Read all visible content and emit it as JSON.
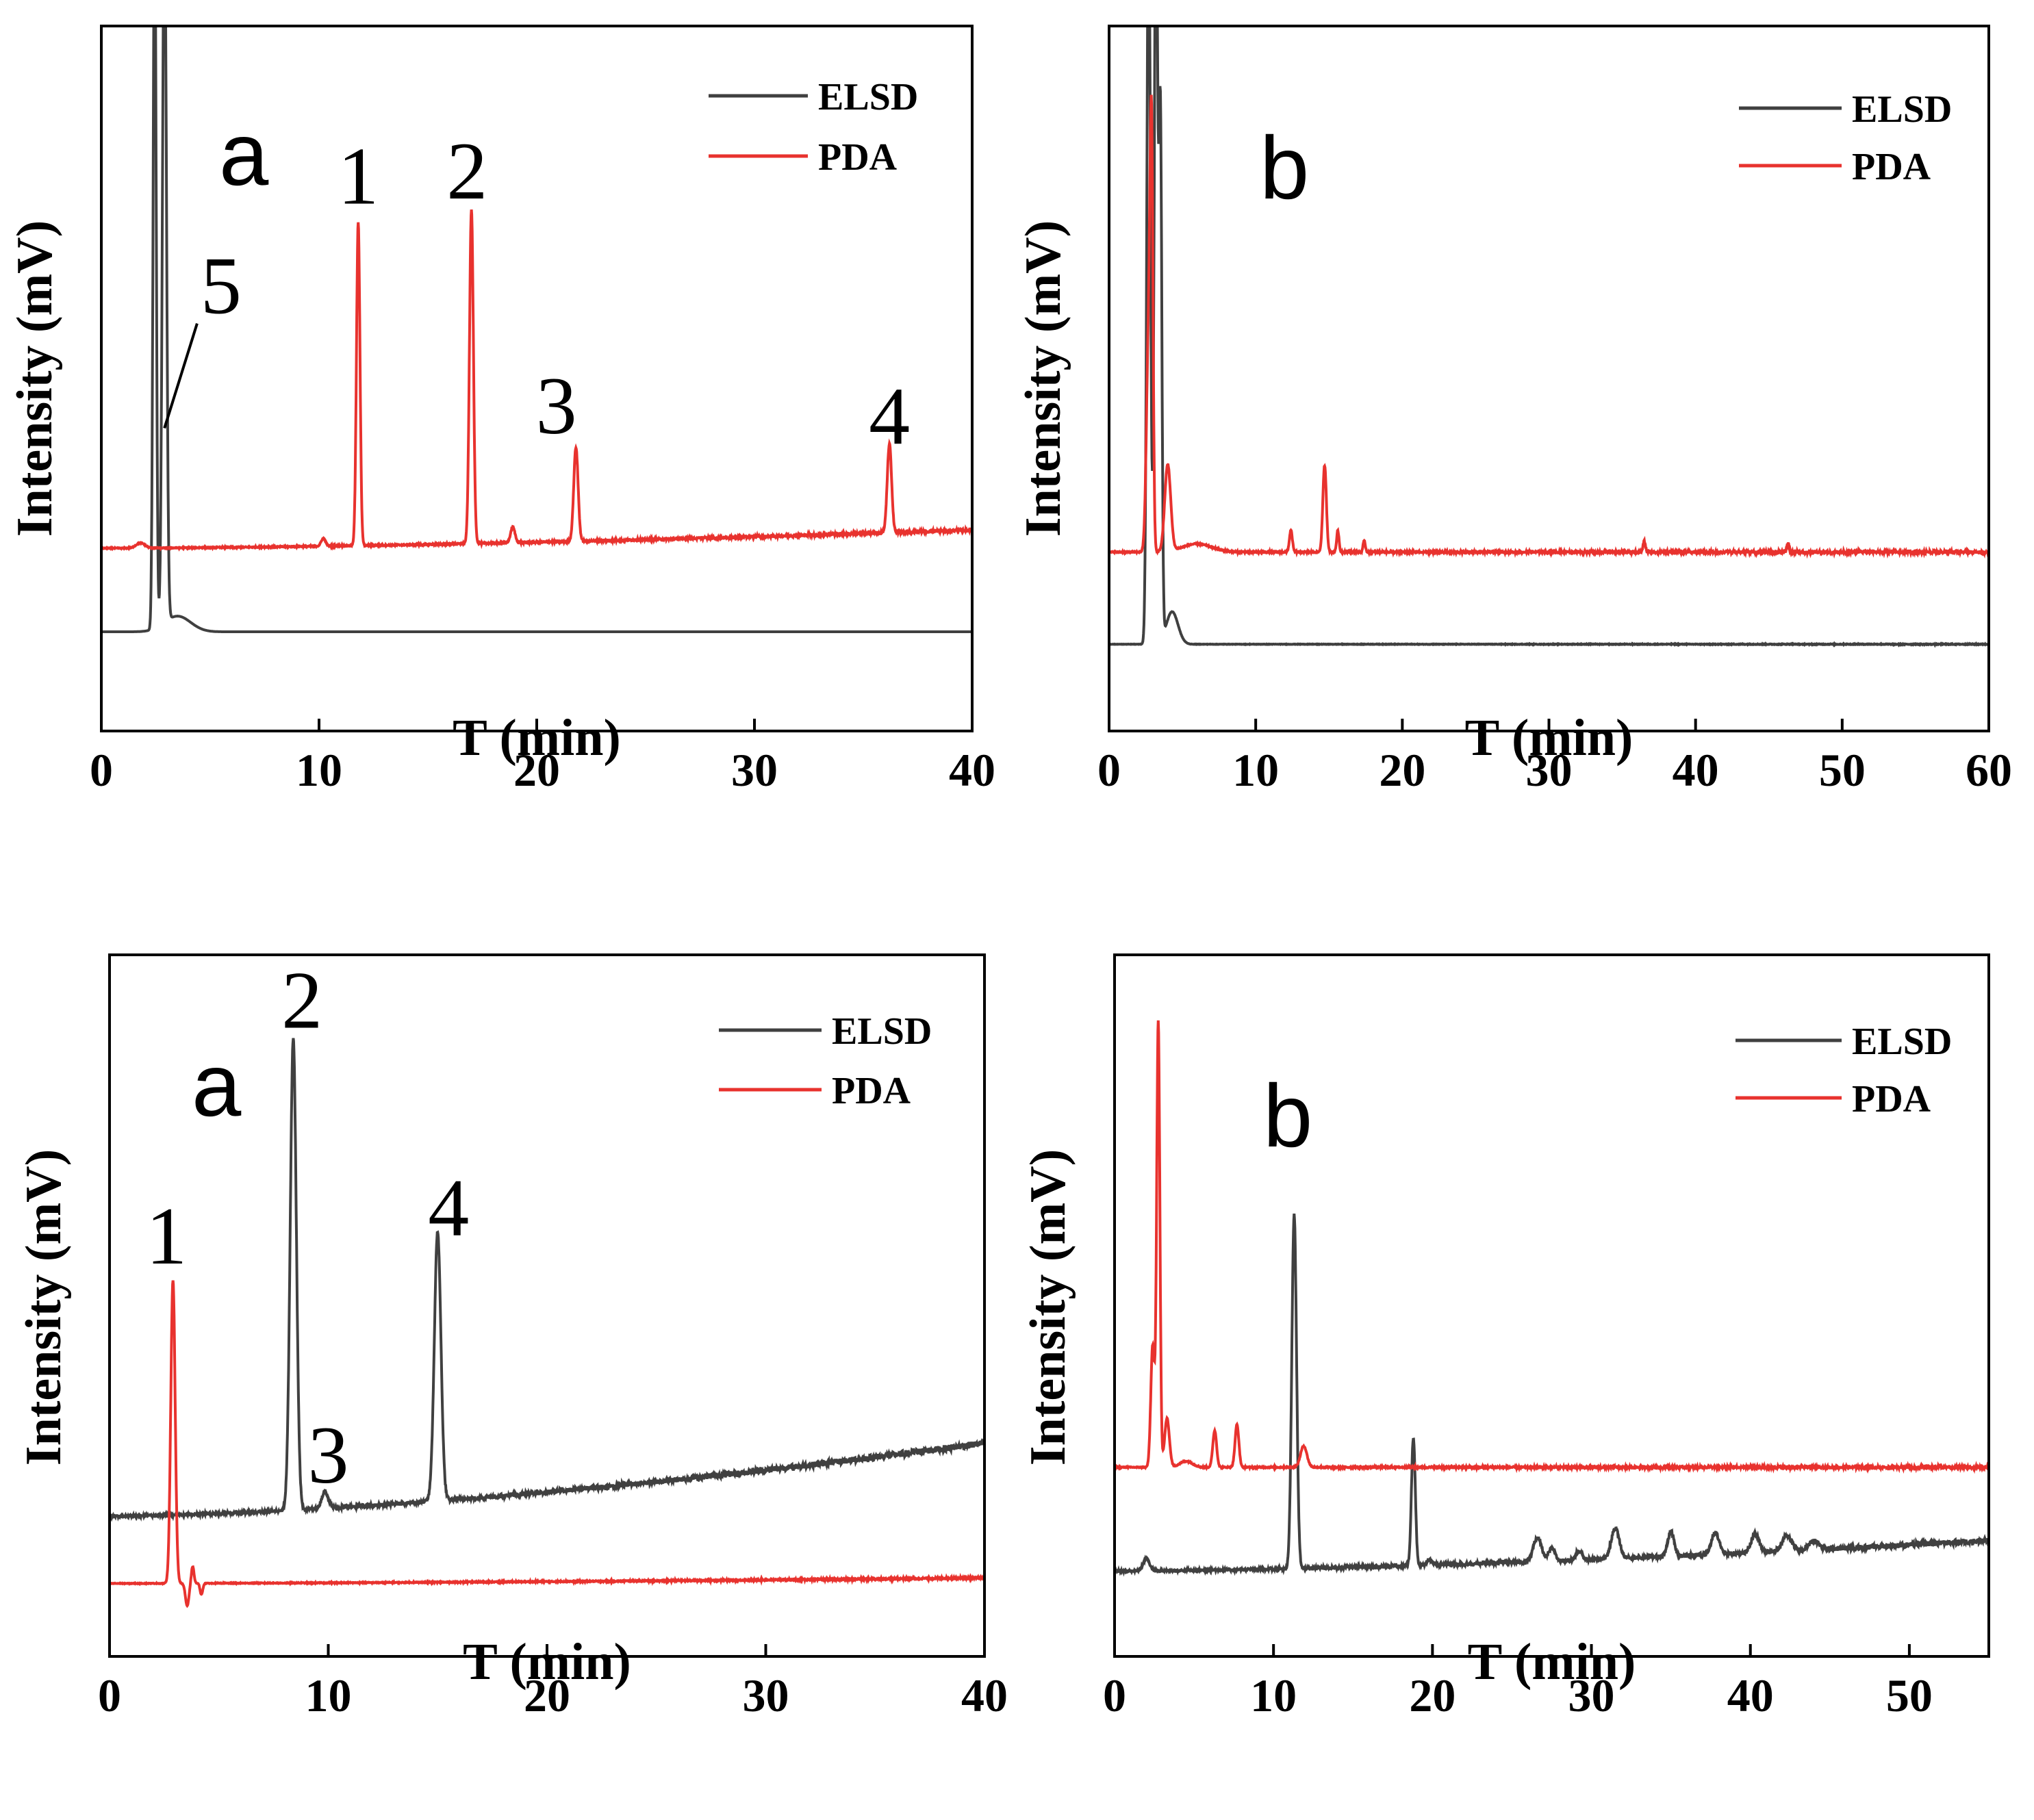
{
  "chart_data": [
    {
      "type": "line",
      "panel_letter": "a",
      "xlabel": "T (min)",
      "ylabel": "Intensity (mV)",
      "xlim": [
        0,
        40
      ],
      "ylim": [
        -0.05,
        1.3
      ],
      "x_ticks": [
        0,
        10,
        20,
        30,
        40
      ],
      "grid": false,
      "legend": {
        "placement": "top-right",
        "entries": [
          "ELSD",
          "PDA"
        ]
      },
      "series": [
        {
          "name": "ELSD",
          "color": "#404040",
          "baseline": 0.14,
          "drift": 0.0,
          "noise": 0.0,
          "peaks": [
            {
              "t": 2.45,
              "h": 1.4,
              "w": 0.07
            },
            {
              "t": 2.9,
              "h": 1.4,
              "w": 0.09
            },
            {
              "t": 3.5,
              "h": 0.03,
              "w": 0.6
            }
          ]
        },
        {
          "name": "PDA",
          "color": "#e8322e",
          "baseline": 0.3,
          "drift": 0.035,
          "noise": 0.0015,
          "peaks": [
            {
              "t": 1.8,
              "h": 0.01,
              "w": 0.2
            },
            {
              "t": 10.2,
              "h": 0.015,
              "w": 0.1
            },
            {
              "t": 11.8,
              "h": 0.62,
              "w": 0.08
            },
            {
              "t": 17.0,
              "h": 0.64,
              "w": 0.09
            },
            {
              "t": 18.9,
              "h": 0.03,
              "w": 0.1
            },
            {
              "t": 21.8,
              "h": 0.18,
              "w": 0.1
            },
            {
              "t": 36.2,
              "h": 0.17,
              "w": 0.1
            }
          ]
        }
      ],
      "annotations": [
        {
          "text": "1",
          "t": 11.8,
          "y": 0.96
        },
        {
          "text": "2",
          "t": 16.8,
          "y": 0.97
        },
        {
          "text": "3",
          "t": 20.9,
          "y": 0.52
        },
        {
          "text": "4",
          "t": 36.2,
          "y": 0.5
        },
        {
          "text": "5",
          "t": 5.5,
          "y": 0.75,
          "leader_to": {
            "t": 2.9,
            "y": 0.53
          }
        }
      ]
    },
    {
      "type": "line",
      "panel_letter": "b",
      "xlabel": "T (min)",
      "ylabel": "Intensity (mV)",
      "xlim": [
        0,
        60
      ],
      "ylim": [
        -0.05,
        1.25
      ],
      "x_ticks": [
        0,
        10,
        20,
        30,
        40,
        50,
        60
      ],
      "grid": false,
      "legend": {
        "placement": "top-right",
        "entries": [
          "ELSD",
          "PDA"
        ]
      },
      "series": [
        {
          "name": "ELSD",
          "color": "#404040",
          "baseline": 0.11,
          "drift": 0.0,
          "noise": 0.0005,
          "peaks": [
            {
              "t": 2.7,
              "h": 1.4,
              "w": 0.12
            },
            {
              "t": 3.2,
              "h": 1.4,
              "w": 0.12
            },
            {
              "t": 3.5,
              "h": 0.95,
              "w": 0.1
            },
            {
              "t": 4.3,
              "h": 0.06,
              "w": 0.4
            }
          ]
        },
        {
          "name": "PDA",
          "color": "#e8322e",
          "baseline": 0.28,
          "drift": 0.0,
          "noise": 0.002,
          "peaks": [
            {
              "t": 2.7,
              "h": 0.4,
              "w": 0.15
            },
            {
              "t": 2.9,
              "h": 0.66,
              "w": 0.1
            },
            {
              "t": 4.0,
              "h": 0.16,
              "w": 0.2
            },
            {
              "t": 6.0,
              "h": 0.015,
              "w": 1.0
            },
            {
              "t": 12.4,
              "h": 0.04,
              "w": 0.1
            },
            {
              "t": 14.7,
              "h": 0.16,
              "w": 0.12
            },
            {
              "t": 15.6,
              "h": 0.04,
              "w": 0.08
            },
            {
              "t": 17.4,
              "h": 0.02,
              "w": 0.08
            },
            {
              "t": 36.5,
              "h": 0.02,
              "w": 0.08
            },
            {
              "t": 46.3,
              "h": 0.015,
              "w": 0.08
            }
          ]
        }
      ],
      "annotations": []
    },
    {
      "type": "line",
      "panel_letter": "a",
      "xlabel": "T (min)",
      "ylabel": "Intensity (mV)",
      "xlim": [
        0,
        40
      ],
      "ylim": [
        -0.05,
        1.2
      ],
      "x_ticks": [
        0,
        10,
        20,
        30,
        40
      ],
      "grid": false,
      "legend": {
        "placement": "top-right",
        "entries": [
          "ELSD",
          "PDA"
        ]
      },
      "series": [
        {
          "name": "ELSD",
          "color": "#404040",
          "baseline": 0.2,
          "drift": 0.13,
          "noise": 0.004,
          "peaks": [
            {
              "t": 8.4,
              "h": 0.84,
              "w": 0.14
            },
            {
              "t": 9.85,
              "h": 0.03,
              "w": 0.15
            },
            {
              "t": 15.0,
              "h": 0.48,
              "w": 0.15
            }
          ]
        },
        {
          "name": "PDA",
          "color": "#e8322e",
          "baseline": 0.08,
          "drift": 0.01,
          "noise": 0.001,
          "peaks": [
            {
              "t": 2.9,
              "h": 0.54,
              "w": 0.1
            },
            {
              "t": 3.55,
              "h": -0.04,
              "w": 0.08
            },
            {
              "t": 3.8,
              "h": 0.03,
              "w": 0.06
            },
            {
              "t": 4.2,
              "h": -0.02,
              "w": 0.06
            }
          ]
        }
      ],
      "annotations": [
        {
          "text": "1",
          "t": 2.6,
          "y": 0.65
        },
        {
          "text": "2",
          "t": 8.8,
          "y": 1.07
        },
        {
          "text": "3",
          "t": 10.0,
          "y": 0.26
        },
        {
          "text": "4",
          "t": 15.5,
          "y": 0.7
        }
      ]
    },
    {
      "type": "line",
      "panel_letter": "b",
      "xlabel": "T (min)",
      "ylabel": "Intensity (mV)",
      "xlim": [
        0,
        55
      ],
      "ylim": [
        -0.05,
        1.1
      ],
      "x_ticks": [
        0,
        10,
        20,
        30,
        40,
        50
      ],
      "grid": false,
      "legend": {
        "placement": "top-right",
        "entries": [
          "ELSD",
          "PDA"
        ]
      },
      "series": [
        {
          "name": "ELSD",
          "color": "#404040",
          "baseline": 0.09,
          "drift": 0.05,
          "noise": 0.003,
          "peaks": [
            {
              "t": 2.0,
              "h": 0.02,
              "w": 0.2
            },
            {
              "t": 11.3,
              "h": 0.58,
              "w": 0.15
            },
            {
              "t": 18.8,
              "h": 0.21,
              "w": 0.12
            },
            {
              "t": 19.8,
              "h": 0.01,
              "w": 0.15
            },
            {
              "t": 26.6,
              "h": 0.04,
              "w": 0.25
            },
            {
              "t": 27.5,
              "h": 0.02,
              "w": 0.2
            },
            {
              "t": 29.2,
              "h": 0.015,
              "w": 0.2
            },
            {
              "t": 31.5,
              "h": 0.05,
              "w": 0.25
            },
            {
              "t": 35.0,
              "h": 0.04,
              "w": 0.2
            },
            {
              "t": 37.8,
              "h": 0.035,
              "w": 0.25
            },
            {
              "t": 40.3,
              "h": 0.03,
              "w": 0.25
            },
            {
              "t": 42.3,
              "h": 0.025,
              "w": 0.3
            },
            {
              "t": 44.0,
              "h": 0.015,
              "w": 0.3
            }
          ]
        },
        {
          "name": "PDA",
          "color": "#e8322e",
          "baseline": 0.26,
          "drift": 0.0,
          "noise": 0.0015,
          "peaks": [
            {
              "t": 2.4,
              "h": 0.2,
              "w": 0.12
            },
            {
              "t": 2.75,
              "h": 0.73,
              "w": 0.1
            },
            {
              "t": 3.3,
              "h": 0.08,
              "w": 0.15
            },
            {
              "t": 4.5,
              "h": 0.01,
              "w": 0.4
            },
            {
              "t": 6.3,
              "h": 0.06,
              "w": 0.12
            },
            {
              "t": 7.7,
              "h": 0.07,
              "w": 0.12
            },
            {
              "t": 11.9,
              "h": 0.035,
              "w": 0.2
            }
          ]
        }
      ],
      "annotations": []
    }
  ]
}
